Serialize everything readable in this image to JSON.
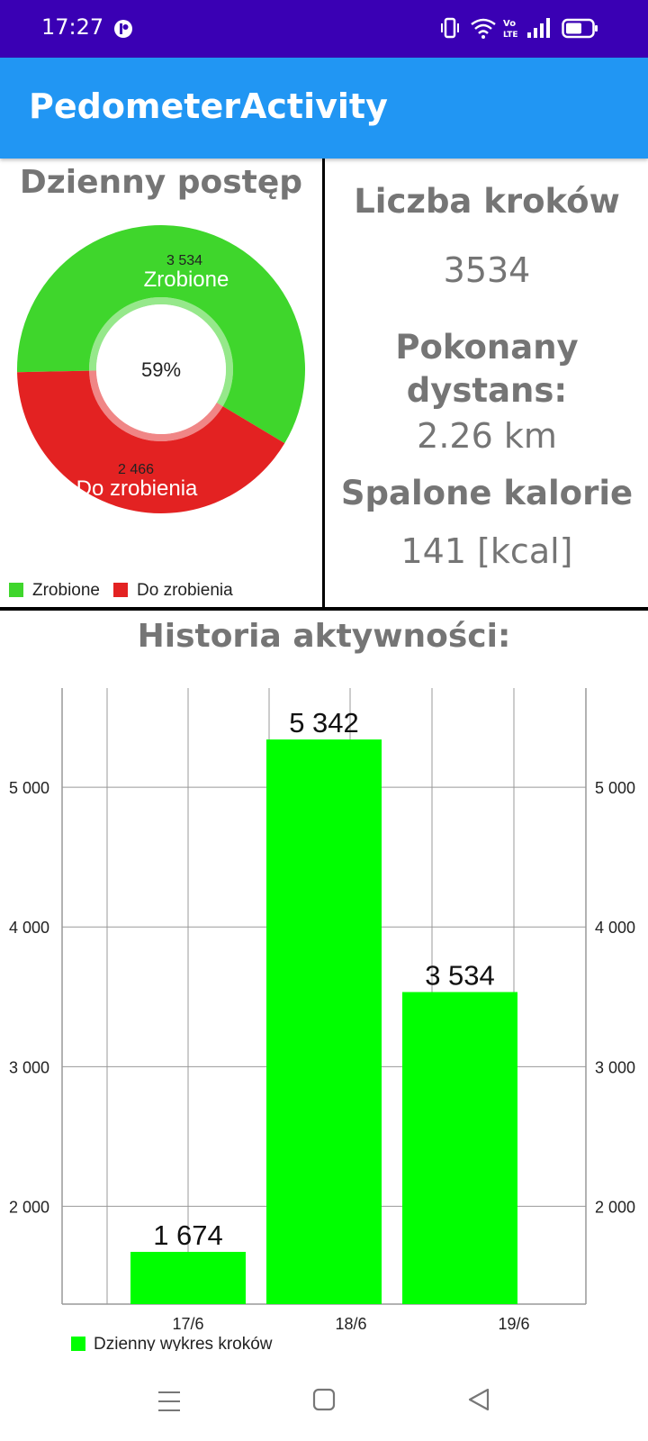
{
  "status_bar": {
    "time": "17:27"
  },
  "app_bar": {
    "title": "PedometerActivity"
  },
  "daily_progress": {
    "title": "Dzienny postęp",
    "center_label": "59%",
    "done_value": "3 534",
    "done_label": "Zrobione",
    "todo_value": "2 466",
    "todo_label": "Do zrobienia",
    "legend": [
      "Zrobione",
      "Do zrobienia"
    ],
    "colors": {
      "done": "#3fd62c",
      "todo": "#e32222"
    }
  },
  "stats": {
    "steps_label": "Liczba kroków",
    "steps_value": "3534",
    "distance_label_line1": "Pokonany",
    "distance_label_line2": "dystans:",
    "distance_value": "2.26 km",
    "calories_label": "Spalone kalorie",
    "calories_value": "141 [kcal]"
  },
  "history": {
    "title": "Historia aktywności:",
    "legend_label": "Dzienny wykres kroków"
  },
  "chart_data": [
    {
      "type": "pie",
      "title": "Dzienny postęp",
      "categories": [
        "Zrobione",
        "Do zrobienia"
      ],
      "values": [
        3534,
        2466
      ],
      "center_text": "59%",
      "legend": "bottom-left"
    },
    {
      "type": "bar",
      "title": "Historia aktywności:",
      "categories": [
        "17/6",
        "18/6",
        "19/6"
      ],
      "series": [
        {
          "name": "Dzienny wykres kroków",
          "values": [
            1674,
            5342,
            3534
          ]
        }
      ],
      "value_labels": [
        "1 674",
        "5 342",
        "3 534"
      ],
      "yticks": [
        "2 000",
        "3 000",
        "4 000",
        "5 000"
      ],
      "ylim": [
        1300,
        5710
      ],
      "grid": true,
      "legend": "bottom-left",
      "color": "#00ff00"
    }
  ]
}
